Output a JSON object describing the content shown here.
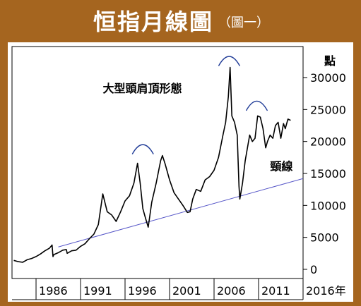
{
  "header": {
    "title": "恒指月線圖",
    "subtitle": "（圖一）"
  },
  "chart_data": {
    "type": "line",
    "title": "恒指月線圖",
    "ylabel": "點",
    "xlabel_suffix": "年",
    "xlim": [
      1983.3,
      2016.0
    ],
    "ylim": [
      0,
      33000
    ],
    "yticks": [
      0,
      5000,
      10000,
      15000,
      20000,
      25000,
      30000
    ],
    "ytick_labels": [
      "0",
      "5000",
      "10000",
      "15000",
      "20000",
      "25000",
      "30000"
    ],
    "xticks": [
      1986,
      1991,
      1996,
      2001,
      2006,
      2011,
      2016
    ],
    "xtick_labels": [
      "1986",
      "1991",
      "1996",
      "2001",
      "2006",
      "2011",
      "2016年"
    ],
    "series": [
      {
        "color": "#000000",
        "x": [
          1983.5,
          1984.0,
          1984.5,
          1985.0,
          1985.5,
          1986.0,
          1986.5,
          1987.0,
          1987.5,
          1987.8,
          1987.9,
          1988.0,
          1988.5,
          1989.0,
          1989.4,
          1989.5,
          1990.0,
          1990.5,
          1991.0,
          1991.5,
          1992.0,
          1992.5,
          1993.0,
          1993.5,
          1994.0,
          1994.5,
          1995.0,
          1995.5,
          1996.0,
          1996.5,
          1997.0,
          1997.4,
          1997.7,
          1998.0,
          1998.3,
          1998.6,
          1999.0,
          1999.5,
          2000.0,
          2000.2,
          2000.5,
          2001.0,
          2001.5,
          2002.0,
          2002.5,
          2003.0,
          2003.3,
          2003.6,
          2004.0,
          2004.5,
          2005.0,
          2005.5,
          2006.0,
          2006.5,
          2007.0,
          2007.3,
          2007.6,
          2007.8,
          2008.0,
          2008.3,
          2008.6,
          2008.8,
          2008.9,
          2009.2,
          2009.5,
          2010.0,
          2010.3,
          2010.6,
          2010.9,
          2011.2,
          2011.5,
          2011.8,
          2012.0,
          2012.3,
          2012.6,
          2012.9,
          2013.2,
          2013.5,
          2013.8,
          2014.0,
          2014.3,
          2014.6
        ],
        "values": [
          1400,
          1200,
          1100,
          1500,
          1700,
          2000,
          2400,
          2900,
          3300,
          3800,
          2000,
          2300,
          2600,
          3000,
          3100,
          2500,
          2900,
          3000,
          3600,
          4000,
          4800,
          5500,
          7000,
          11800,
          9000,
          8500,
          7500,
          9000,
          10700,
          11500,
          13500,
          16600,
          13500,
          9500,
          8000,
          6600,
          10500,
          13500,
          17000,
          17800,
          16500,
          14000,
          12000,
          11000,
          10000,
          8900,
          9000,
          11000,
          12500,
          12200,
          14000,
          14500,
          15500,
          17500,
          21000,
          23000,
          27000,
          31600,
          24000,
          23000,
          21000,
          13000,
          11000,
          13500,
          17000,
          21000,
          20000,
          20500,
          24000,
          23800,
          22000,
          19000,
          20000,
          21000,
          20500,
          22500,
          23000,
          20500,
          22800,
          22000,
          23500,
          23300
        ]
      }
    ],
    "neckline": {
      "x": [
        1988.5,
        2016.0
      ],
      "values": [
        3500,
        14200
      ],
      "color": "#5656c8"
    },
    "shoulder_arcs": [
      {
        "x": 1998.0,
        "y": 17800,
        "color": "#1e3a96"
      },
      {
        "x": 2007.7,
        "y": 31600,
        "color": "#1e3a96"
      },
      {
        "x": 2010.8,
        "y": 24600,
        "color": "#1e3a96"
      }
    ],
    "annotations": [
      {
        "text": "大型頭肩頂形態",
        "x": 1993.5,
        "y": 27700
      },
      {
        "text": "頸線",
        "x": 2012.3,
        "y": 15500
      }
    ]
  }
}
